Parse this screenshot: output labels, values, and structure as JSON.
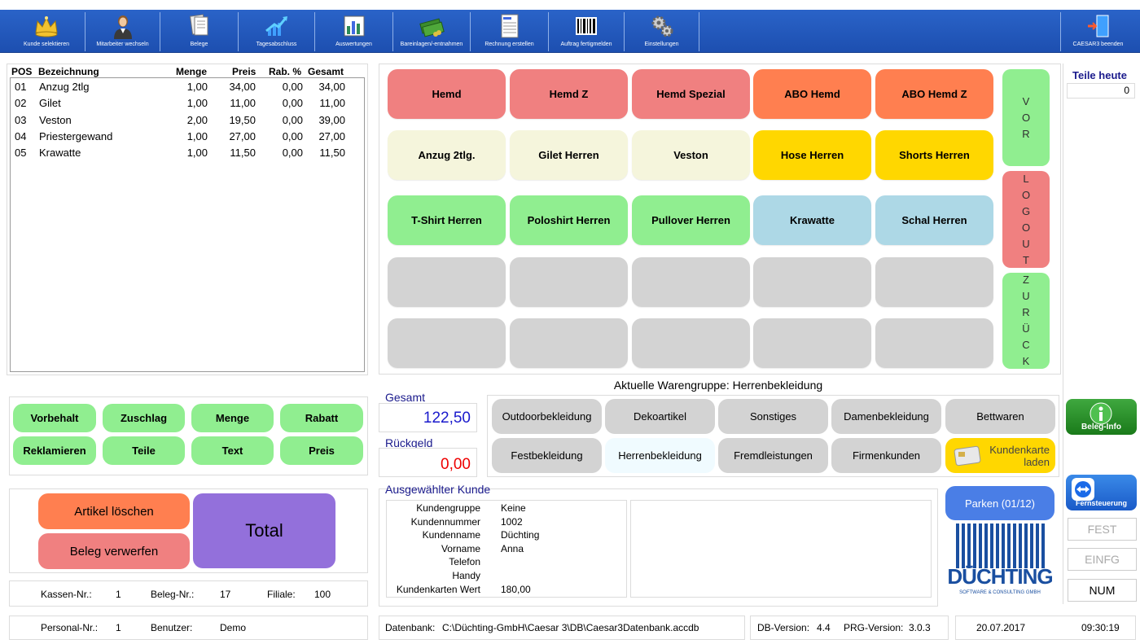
{
  "toolbar": {
    "items": [
      {
        "label": "Kunde selektieren",
        "icon": "crown-icon"
      },
      {
        "label": "Mitarbeiter wechseln",
        "icon": "person-icon"
      },
      {
        "label": "Belege",
        "icon": "documents-icon"
      },
      {
        "label": "Tagesabschluss",
        "icon": "chart-up-icon"
      },
      {
        "label": "Auswertungen",
        "icon": "bar-chart-icon"
      },
      {
        "label": "Bareinlagen/-entnahmen",
        "icon": "money-icon"
      },
      {
        "label": "Rechnung erstellen",
        "icon": "invoice-icon"
      },
      {
        "label": "Auftrag fertigmelden",
        "icon": "barcode-icon"
      },
      {
        "label": "Einstellungen",
        "icon": "gears-icon"
      }
    ],
    "exit_label": "CAESAR3 beenden"
  },
  "positions": {
    "headers": {
      "pos": "POS",
      "name": "Bezeichnung",
      "qty": "Menge",
      "price": "Preis",
      "discount": "Rab. %",
      "total": "Gesamt"
    },
    "rows": [
      {
        "pos": "01",
        "name": "Anzug 2tlg",
        "qty": "1,00",
        "price": "34,00",
        "discount": "0,00",
        "total": "34,00"
      },
      {
        "pos": "02",
        "name": "Gilet",
        "qty": "1,00",
        "price": "11,00",
        "discount": "0,00",
        "total": "11,00"
      },
      {
        "pos": "03",
        "name": "Veston",
        "qty": "2,00",
        "price": "19,50",
        "discount": "0,00",
        "total": "39,00"
      },
      {
        "pos": "04",
        "name": "Priestergewand",
        "qty": "1,00",
        "price": "27,00",
        "discount": "0,00",
        "total": "27,00"
      },
      {
        "pos": "05",
        "name": "Krawatte",
        "qty": "1,00",
        "price": "11,50",
        "discount": "0,00",
        "total": "11,50"
      }
    ]
  },
  "articles": {
    "rows": [
      [
        {
          "label": "Hemd",
          "color": "red"
        },
        {
          "label": "Hemd Z",
          "color": "red"
        },
        {
          "label": "Hemd Spezial",
          "color": "red"
        },
        {
          "label": "ABO Hemd",
          "color": "orange"
        },
        {
          "label": "ABO Hemd Z",
          "color": "orange"
        }
      ],
      [
        {
          "label": "Anzug 2tlg.",
          "color": "beige"
        },
        {
          "label": "Gilet Herren",
          "color": "beige"
        },
        {
          "label": "Veston",
          "color": "beige"
        },
        {
          "label": "Hose Herren",
          "color": "yellow"
        },
        {
          "label": "Shorts Herren",
          "color": "yellow"
        }
      ],
      [
        {
          "label": "T-Shirt Herren",
          "color": "green"
        },
        {
          "label": "Poloshirt Herren",
          "color": "green"
        },
        {
          "label": "Pullover Herren",
          "color": "green"
        },
        {
          "label": "Krawatte",
          "color": "blue"
        },
        {
          "label": "Schal Herren",
          "color": "blue"
        }
      ],
      [
        {
          "label": "",
          "color": "empty"
        },
        {
          "label": "",
          "color": "empty"
        },
        {
          "label": "",
          "color": "empty"
        },
        {
          "label": "",
          "color": "empty"
        },
        {
          "label": "",
          "color": "empty"
        }
      ],
      [
        {
          "label": "",
          "color": "empty"
        },
        {
          "label": "",
          "color": "empty"
        },
        {
          "label": "",
          "color": "empty"
        },
        {
          "label": "",
          "color": "empty"
        },
        {
          "label": "",
          "color": "empty"
        }
      ]
    ],
    "side": {
      "vor": "VOR",
      "logout": "LOGOUT",
      "zurueck": "ZURÜCK"
    }
  },
  "teile_heute": {
    "label": "Teile heute",
    "value": "0"
  },
  "actions": {
    "vorbehalt": "Vorbehalt",
    "zuschlag": "Zuschlag",
    "menge": "Menge",
    "rabatt": "Rabatt",
    "reklamieren": "Reklamieren",
    "teile": "Teile",
    "text": "Text",
    "preis": "Preis",
    "artikel_loeschen": "Artikel löschen",
    "beleg_verwerfen": "Beleg verwerfen",
    "total": "Total"
  },
  "totals": {
    "gesamt_label": "Gesamt",
    "gesamt_value": "122,50",
    "rueckgeld_label": "Rückgeld",
    "rueckgeld_value": "0,00"
  },
  "warengruppe": {
    "current_label": "Aktuelle Warengruppe: Herrenbekleidung",
    "groups": [
      "Outdoorbekleidung",
      "Dekoartikel",
      "Sonstiges",
      "Damenbekleidung",
      "Bettwaren",
      "Festbekleidung",
      "Herrenbekleidung",
      "Fremdleistungen",
      "Firmenkunden"
    ],
    "kundenkarte_line1": "Kundenkarte",
    "kundenkarte_line2": "laden"
  },
  "kunde": {
    "title": "Ausgewählter Kunde",
    "fields": [
      {
        "label": "Kundengruppe",
        "value": "Keine"
      },
      {
        "label": "Kundennummer",
        "value": "1002"
      },
      {
        "label": "Kundenname",
        "value": "Düchting"
      },
      {
        "label": "Vorname",
        "value": "Anna"
      },
      {
        "label": "Telefon",
        "value": ""
      },
      {
        "label": "Handy",
        "value": ""
      },
      {
        "label": "Kundenkarten Wert",
        "value": "180,00"
      }
    ]
  },
  "parken": "Parken (01/12)",
  "beleg_info": "Beleg-Info",
  "fernsteuerung": "Fernsteuerung",
  "logo": {
    "text": "DÜCHTING",
    "sub": "SOFTWARE & CONSULTING GMBH"
  },
  "keys": {
    "fest": "FEST",
    "einfg": "EINFG",
    "num": "NUM"
  },
  "status": {
    "kassen_label": "Kassen-Nr.:",
    "kassen_value": "1",
    "beleg_label": "Beleg-Nr.:",
    "beleg_value": "17",
    "filiale_label": "Filiale:",
    "filiale_value": "100",
    "personal_label": "Personal-Nr.:",
    "personal_value": "1",
    "benutzer_label": "Benutzer:",
    "benutzer_value": "Demo",
    "datenbank_label": "Datenbank:",
    "datenbank_value": "C:\\Düchting-GmbH\\Caesar 3\\DB\\Caesar3Datenbank.accdb",
    "dbversion_label": "DB-Version:",
    "dbversion_value": "4.4",
    "prgversion_label": "PRG-Version:",
    "prgversion_value": "3.0.3",
    "date": "20.07.2017",
    "time": "09:30:19"
  }
}
